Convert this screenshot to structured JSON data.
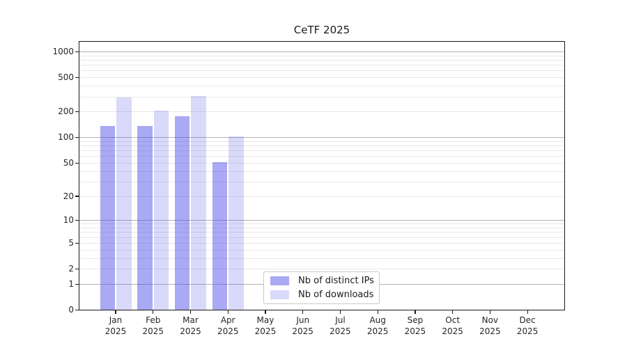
{
  "chart_data": {
    "type": "bar",
    "title": "CeTF 2025",
    "year": "2025",
    "categories": [
      "Jan",
      "Feb",
      "Mar",
      "Apr",
      "May",
      "Jun",
      "Jul",
      "Aug",
      "Sep",
      "Oct",
      "Nov",
      "Dec"
    ],
    "series": [
      {
        "name": "Nb of distinct IPs",
        "color": "#4040e6",
        "alpha": 0.45,
        "values": [
          138,
          136,
          179,
          51,
          null,
          null,
          null,
          null,
          null,
          null,
          null,
          null
        ]
      },
      {
        "name": "Nb of downloads",
        "color": "#4040e6",
        "alpha": 0.2,
        "values": [
          297,
          207,
          305,
          104,
          null,
          null,
          null,
          null,
          null,
          null,
          null,
          null
        ]
      }
    ],
    "yscale": "log1p",
    "ylim": [
      0,
      1300
    ],
    "y_ticks": [
      0,
      1,
      2,
      5,
      10,
      20,
      50,
      100,
      200,
      500,
      1000
    ],
    "y_grid_major": [
      1,
      10,
      100,
      1000
    ],
    "grid": "horizontal-only",
    "legend_position": "lower-center",
    "colors": {
      "major_grid": "#b3b3b3",
      "minor_grid": "#e8e8e8",
      "axis": "#1a1a1a",
      "text": "#262626"
    }
  }
}
